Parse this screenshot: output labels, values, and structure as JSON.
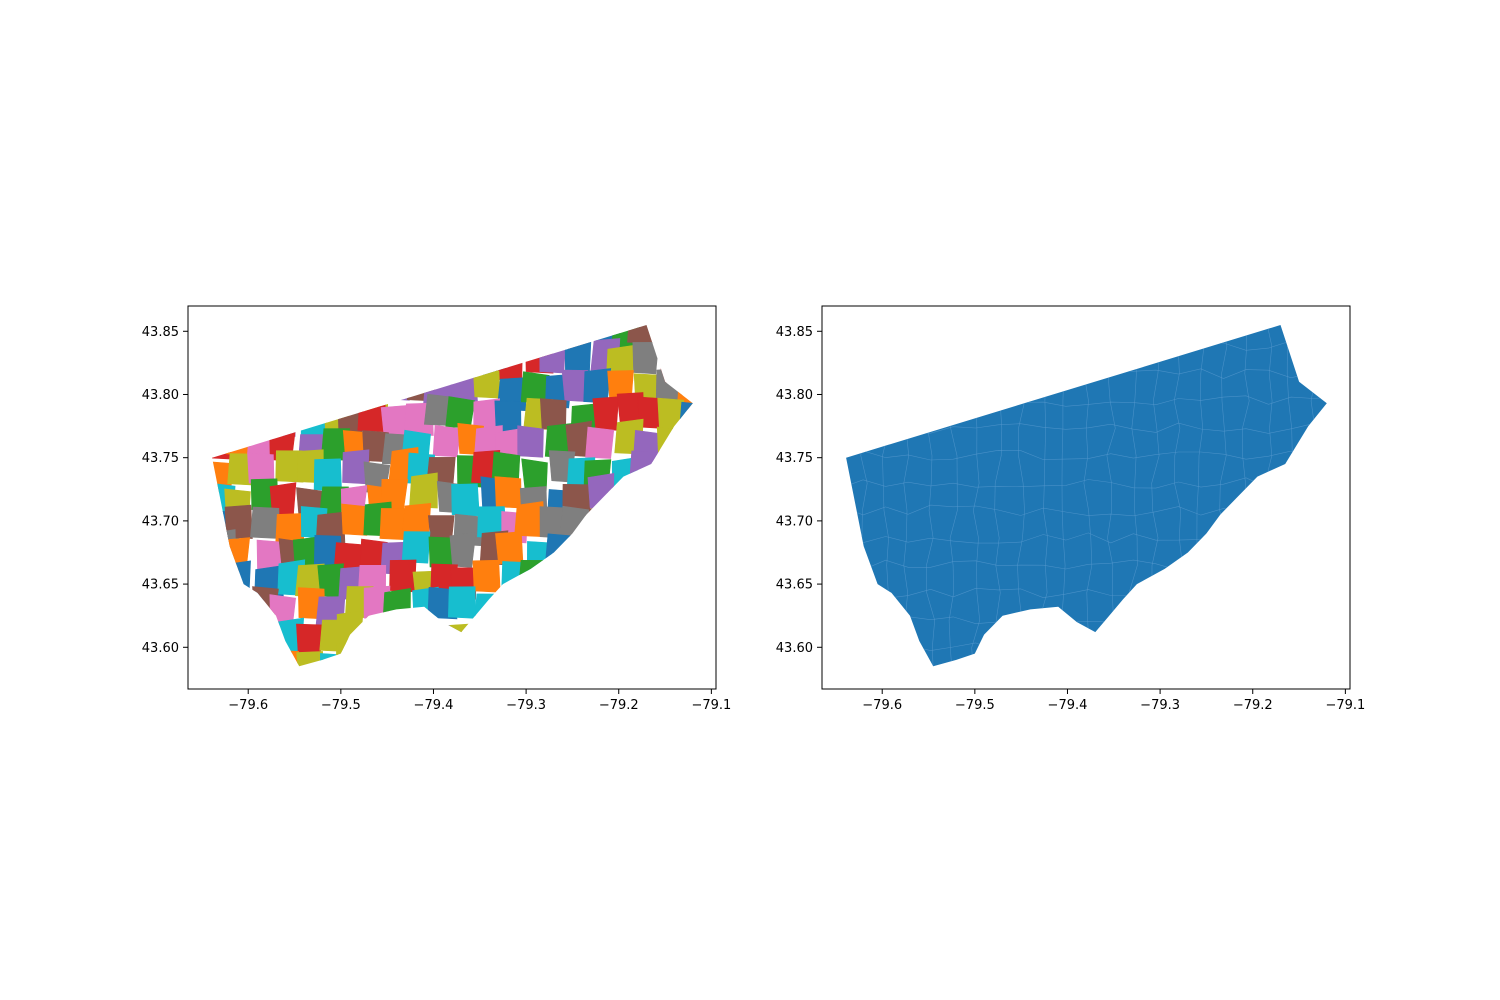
{
  "figure": {
    "panels": [
      {
        "id": "left",
        "style": "categorical-neighbourhoods",
        "xlim": [
          -79.665,
          -79.095
        ],
        "ylim": [
          43.567,
          43.87
        ],
        "xticks": [
          {
            "value": -79.6,
            "label": "−79.6"
          },
          {
            "value": -79.5,
            "label": "−79.5"
          },
          {
            "value": -79.4,
            "label": "−79.4"
          },
          {
            "value": -79.3,
            "label": "−79.3"
          },
          {
            "value": -79.2,
            "label": "−79.2"
          },
          {
            "value": -79.1,
            "label": "−79.1"
          }
        ],
        "yticks": [
          {
            "value": 43.6,
            "label": "43.60"
          },
          {
            "value": 43.65,
            "label": "43.65"
          },
          {
            "value": 43.7,
            "label": "43.70"
          },
          {
            "value": 43.75,
            "label": "43.75"
          },
          {
            "value": 43.8,
            "label": "43.80"
          },
          {
            "value": 43.85,
            "label": "43.85"
          }
        ]
      },
      {
        "id": "right",
        "style": "single-fill-boundaries",
        "xlim": [
          -79.665,
          -79.095
        ],
        "ylim": [
          43.567,
          43.87
        ],
        "xticks": [
          {
            "value": -79.6,
            "label": "−79.6"
          },
          {
            "value": -79.5,
            "label": "−79.5"
          },
          {
            "value": -79.4,
            "label": "−79.4"
          },
          {
            "value": -79.3,
            "label": "−79.3"
          },
          {
            "value": -79.2,
            "label": "−79.2"
          },
          {
            "value": -79.1,
            "label": "−79.1"
          }
        ],
        "yticks": [
          {
            "value": 43.6,
            "label": "43.60"
          },
          {
            "value": 43.65,
            "label": "43.65"
          },
          {
            "value": 43.7,
            "label": "43.70"
          },
          {
            "value": 43.75,
            "label": "43.75"
          },
          {
            "value": 43.8,
            "label": "43.80"
          },
          {
            "value": 43.85,
            "label": "43.85"
          }
        ]
      }
    ],
    "colors": {
      "single_fill": "#1f77b4",
      "palette": [
        "#1f77b4",
        "#ff7f0e",
        "#2ca02c",
        "#d62728",
        "#9467bd",
        "#8c564b",
        "#e377c2",
        "#7f7f7f",
        "#bcbd22",
        "#17becf"
      ]
    },
    "outline": [
      [
        -79.639,
        43.75
      ],
      [
        -79.17,
        43.855
      ],
      [
        -79.15,
        43.81
      ],
      [
        -79.12,
        43.793
      ],
      [
        -79.14,
        43.775
      ],
      [
        -79.165,
        43.745
      ],
      [
        -79.195,
        43.735
      ],
      [
        -79.215,
        43.72
      ],
      [
        -79.235,
        43.705
      ],
      [
        -79.25,
        43.69
      ],
      [
        -79.27,
        43.675
      ],
      [
        -79.295,
        43.662
      ],
      [
        -79.325,
        43.65
      ],
      [
        -79.34,
        43.638
      ],
      [
        -79.355,
        43.625
      ],
      [
        -79.37,
        43.612
      ],
      [
        -79.39,
        43.62
      ],
      [
        -79.41,
        43.632
      ],
      [
        -79.44,
        43.63
      ],
      [
        -79.47,
        43.625
      ],
      [
        -79.49,
        43.61
      ],
      [
        -79.5,
        43.595
      ],
      [
        -79.52,
        43.59
      ],
      [
        -79.545,
        43.585
      ],
      [
        -79.56,
        43.605
      ],
      [
        -79.57,
        43.625
      ],
      [
        -79.59,
        43.643
      ],
      [
        -79.605,
        43.65
      ],
      [
        -79.62,
        43.68
      ],
      [
        -79.639,
        43.75
      ]
    ]
  }
}
